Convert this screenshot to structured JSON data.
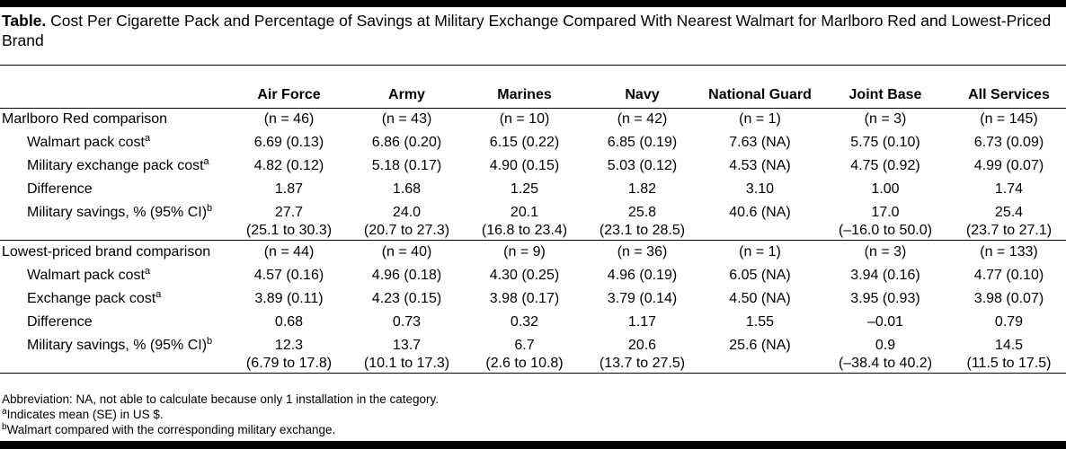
{
  "title": {
    "label": "Table.",
    "text": "Cost Per Cigarette Pack and Percentage of Savings at Military Exchange Compared With Nearest Walmart for Marlboro Red and Lowest-Priced Brand"
  },
  "columns": [
    "Air Force",
    "Army",
    "Marines",
    "Navy",
    "National Guard",
    "Joint Base",
    "All Services"
  ],
  "sections": [
    {
      "label": "Marlboro Red comparison",
      "n": [
        "(n = 46)",
        "(n = 43)",
        "(n = 10)",
        "(n = 42)",
        "(n = 1)",
        "(n = 3)",
        "(n = 145)"
      ],
      "rows": [
        {
          "label": "Walmart pack cost",
          "sup": "a",
          "values": [
            "6.69 (0.13)",
            "6.86 (0.20)",
            "6.15 (0.22)",
            "6.85 (0.19)",
            "7.63 (NA)",
            "5.75 (0.10)",
            "6.73 (0.09)"
          ]
        },
        {
          "label": "Military exchange pack cost",
          "sup": "a",
          "values": [
            "4.82 (0.12)",
            "5.18 (0.17)",
            "4.90 (0.15)",
            "5.03 (0.12)",
            "4.53 (NA)",
            "4.75 (0.92)",
            "4.99 (0.07)"
          ]
        },
        {
          "label": "Difference",
          "sup": "",
          "values": [
            "1.87",
            "1.68",
            "1.25",
            "1.82",
            "3.10",
            "1.00",
            "1.74"
          ]
        },
        {
          "label": "Military savings, % (95% CI)",
          "sup": "b",
          "values": [
            "27.7",
            "24.0",
            "20.1",
            "25.8",
            "40.6 (NA)",
            "17.0",
            "25.4"
          ],
          "ci": [
            "(25.1 to 30.3)",
            "(20.7 to 27.3)",
            "(16.8 to 23.4)",
            "(23.1 to 28.5)",
            "",
            "(–16.0 to 50.0)",
            "(23.7 to 27.1)"
          ]
        }
      ]
    },
    {
      "label": "Lowest-priced brand comparison",
      "n": [
        "(n = 44)",
        "(n = 40)",
        "(n = 9)",
        "(n = 36)",
        "(n = 1)",
        "(n = 3)",
        "(n = 133)"
      ],
      "rows": [
        {
          "label": "Walmart pack cost",
          "sup": "a",
          "values": [
            "4.57 (0.16)",
            "4.96 (0.18)",
            "4.30 (0.25)",
            "4.96 (0.19)",
            "6.05 (NA)",
            "3.94 (0.16)",
            "4.77 (0.10)"
          ]
        },
        {
          "label": "Exchange pack cost",
          "sup": "a",
          "values": [
            "3.89 (0.11)",
            "4.23 (0.15)",
            "3.98 (0.17)",
            "3.79 (0.14)",
            "4.50 (NA)",
            "3.95 (0.93)",
            "3.98 (0.07)"
          ]
        },
        {
          "label": "Difference",
          "sup": "",
          "values": [
            "0.68",
            "0.73",
            "0.32",
            "1.17",
            "1.55",
            "–0.01",
            "0.79"
          ]
        },
        {
          "label": "Military savings, % (95% CI)",
          "sup": "b",
          "values": [
            "12.3",
            "13.7",
            "6.7",
            "20.6",
            "25.6 (NA)",
            "0.9",
            "14.5"
          ],
          "ci": [
            "(6.79 to 17.8)",
            "(10.1 to 17.3)",
            "(2.6 to 10.8)",
            "(13.7 to 27.5)",
            "",
            "(–38.4 to 40.2)",
            "(11.5 to 17.5)"
          ]
        }
      ]
    }
  ],
  "footnotes": {
    "abbreviation": "Abbreviation: NA, not able to calculate because only 1 installation in the category.",
    "a_mark": "a",
    "a_text": "Indicates mean (SE) in US $.",
    "b_mark": "b",
    "b_text": "Walmart compared with the corresponding military exchange."
  }
}
